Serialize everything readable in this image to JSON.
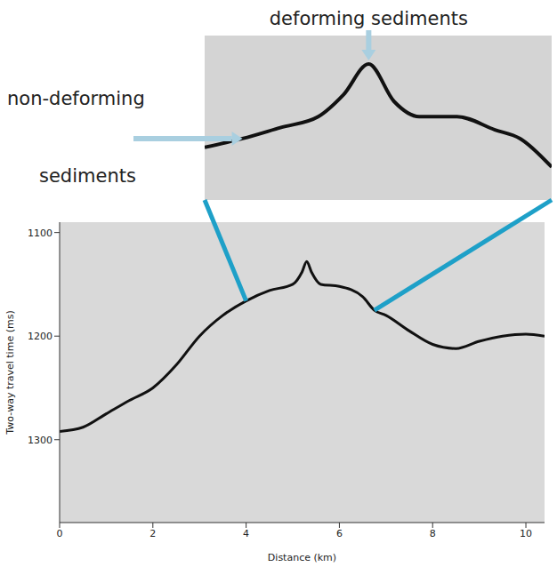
{
  "chart_data": [
    {
      "type": "line",
      "x_label": "Distance (km)",
      "y_label": "Two-way travel time (ms)",
      "x": [
        0,
        0.5,
        1,
        1.5,
        2,
        2.5,
        3,
        3.5,
        4,
        4.5,
        5,
        5.2,
        5.3,
        5.4,
        5.6,
        6,
        6.5,
        6.75,
        7,
        7.5,
        8,
        8.5,
        9,
        9.5,
        10,
        10.4
      ],
      "values": [
        1292,
        1288,
        1275,
        1262,
        1250,
        1228,
        1200,
        1180,
        1166,
        1156,
        1150,
        1138,
        1128,
        1138,
        1150,
        1152,
        1162,
        1175,
        1180,
        1195,
        1208,
        1212,
        1205,
        1200,
        1198,
        1200
      ],
      "color": "#111111",
      "xlim": [
        0,
        10.4
      ],
      "xticks": [
        0,
        2,
        4,
        6,
        8,
        10
      ],
      "ylim": [
        1090,
        1380
      ],
      "yticks": [
        1100,
        1200,
        1300
      ],
      "grid": false
    },
    {
      "type": "line",
      "x": [
        4,
        4.3,
        4.6,
        4.9,
        5.1,
        5.3,
        5.5,
        5.7,
        6,
        6.3,
        6.5,
        6.75
      ],
      "values": [
        1166,
        1162,
        1157,
        1152,
        1142,
        1128,
        1145,
        1152,
        1152,
        1158,
        1162,
        1175
      ],
      "color": "#111111",
      "xlim": [
        4,
        6.75
      ],
      "ylim": [
        1115,
        1190
      ],
      "tick_labels": false,
      "grid": false,
      "annotations": [
        {
          "text": "deforming sediments"
        },
        {
          "text": "non-deforming sediments"
        }
      ]
    }
  ]
}
